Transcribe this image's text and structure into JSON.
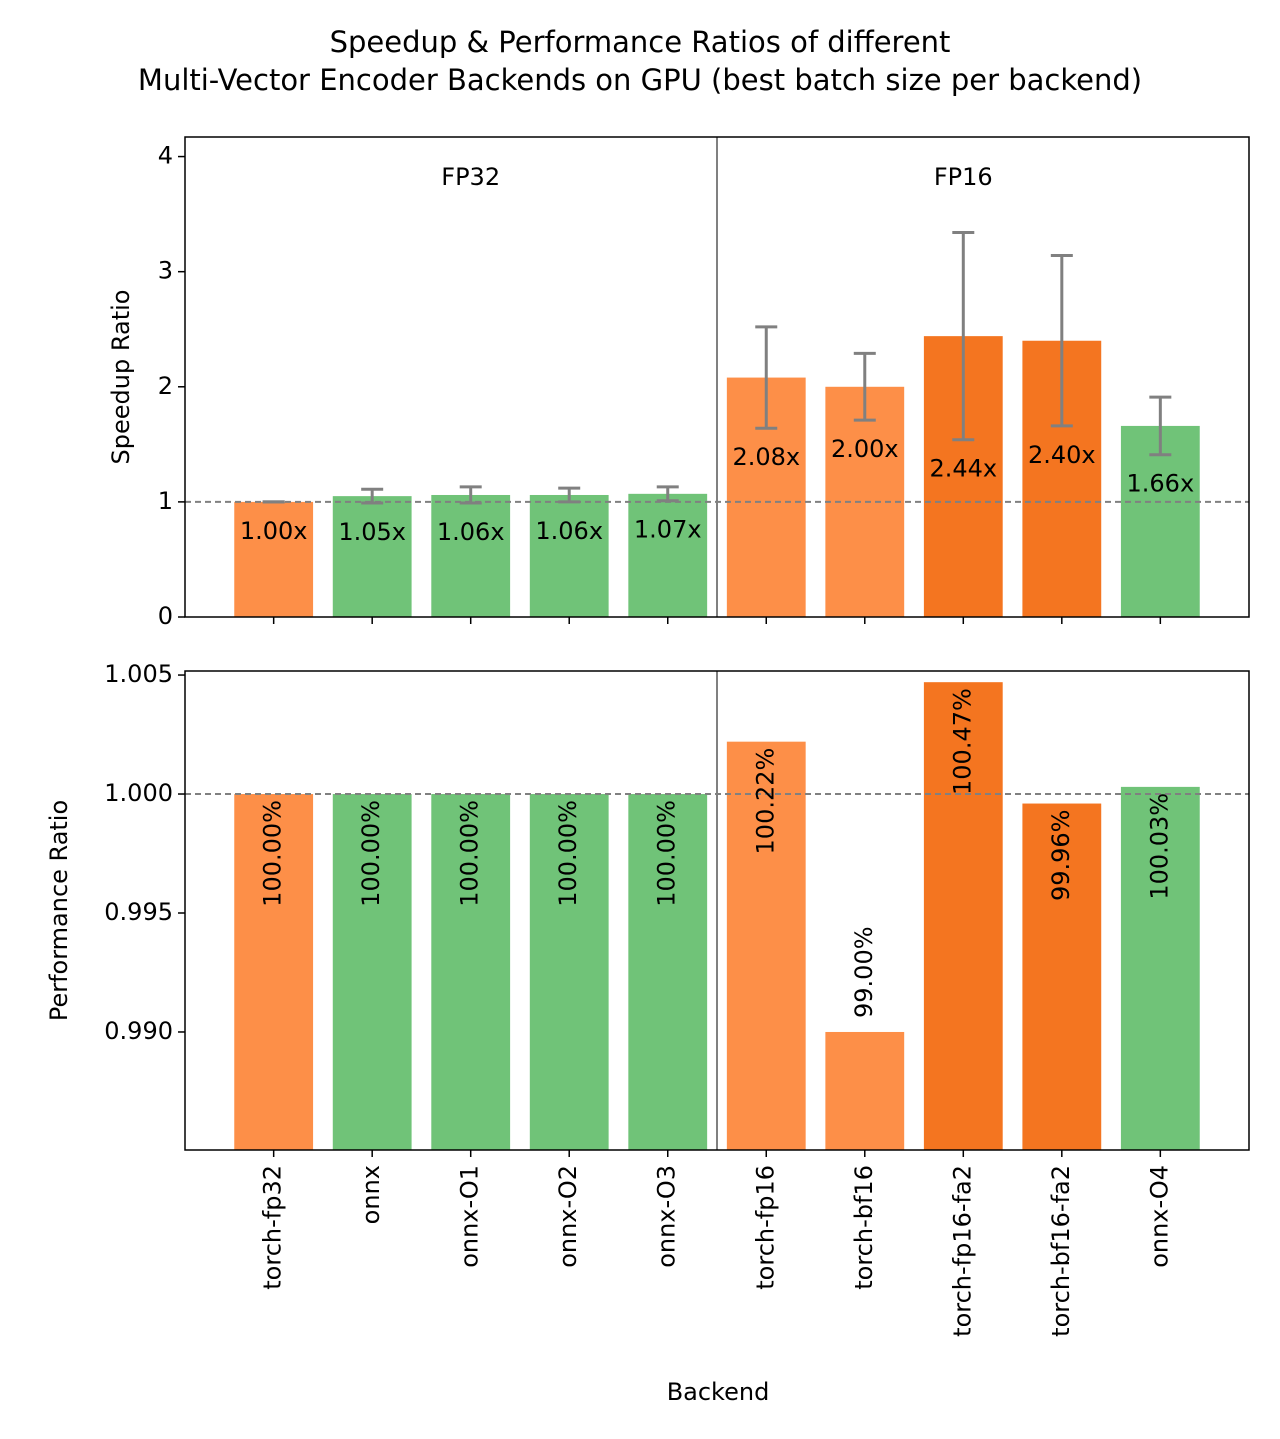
{
  "title": [
    "Speedup & Performance Ratios of different",
    "Multi-Vector Encoder Backends on GPU (best batch size per backend)"
  ],
  "xlabel": "Backend",
  "chart_data": [
    {
      "type": "bar",
      "ylabel": "Speedup Ratio",
      "categories": [
        "torch-fp32",
        "onnx",
        "onnx-O1",
        "onnx-O2",
        "onnx-O3",
        "torch-fp16",
        "torch-bf16",
        "torch-fp16-fa2",
        "torch-bf16-fa2",
        "onnx-O4"
      ],
      "values": [
        1.0,
        1.05,
        1.06,
        1.06,
        1.07,
        2.08,
        2.0,
        2.44,
        2.4,
        1.66
      ],
      "value_labels": [
        "1.00x",
        "1.05x",
        "1.06x",
        "1.06x",
        "1.07x",
        "2.08x",
        "2.00x",
        "2.44x",
        "2.40x",
        "1.66x"
      ],
      "errors": [
        0.0,
        0.06,
        0.07,
        0.06,
        0.06,
        0.44,
        0.29,
        0.9,
        0.74,
        0.25
      ],
      "colors": [
        "#fd8f48",
        "#70c378",
        "#70c378",
        "#70c378",
        "#70c378",
        "#fd8f48",
        "#fd8f48",
        "#f47520",
        "#f47520",
        "#70c378"
      ],
      "groups": [
        "FP32",
        "FP16"
      ],
      "reference_line": 1,
      "ylim": [
        0,
        4.17
      ],
      "yticks": [
        0,
        1,
        2,
        3,
        4
      ]
    },
    {
      "type": "bar",
      "ylabel": "Performance Ratio",
      "categories": [
        "torch-fp32",
        "onnx",
        "onnx-O1",
        "onnx-O2",
        "onnx-O3",
        "torch-fp16",
        "torch-bf16",
        "torch-fp16-fa2",
        "torch-bf16-fa2",
        "onnx-O4"
      ],
      "values": [
        1.0,
        1.0,
        1.0,
        1.0,
        1.0,
        1.0022,
        0.99,
        1.0047,
        0.9996,
        1.0003
      ],
      "value_labels": [
        "100.00%",
        "100.00%",
        "100.00%",
        "100.00%",
        "100.00%",
        "100.22%",
        "99.00%",
        "100.47%",
        "99.96%",
        "100.03%"
      ],
      "colors": [
        "#fd8f48",
        "#70c378",
        "#70c378",
        "#70c378",
        "#70c378",
        "#fd8f48",
        "#fd8f48",
        "#f47520",
        "#f47520",
        "#70c378"
      ],
      "reference_line": 1.0,
      "ylim": [
        0.98504,
        1.00517
      ],
      "yticks": [
        {
          "value": 0.99,
          "label": "0.990"
        },
        0.995,
        {
          "value": 1.0,
          "label": "1.000"
        },
        1.005
      ]
    }
  ]
}
